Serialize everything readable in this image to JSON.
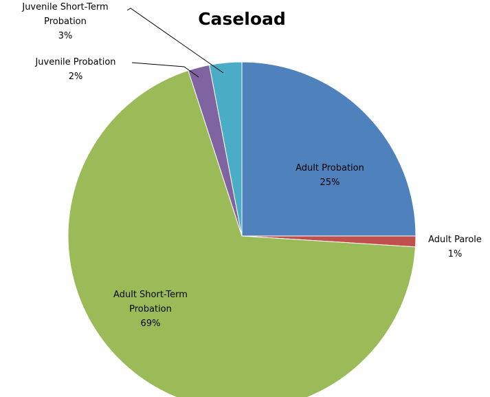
{
  "chart_data": {
    "type": "pie",
    "title": "Caseload",
    "slices": [
      {
        "label": "Adult Probation",
        "value": 25,
        "value_label": "25%",
        "color": "#4f81bd",
        "label_lines": [
          "Adult Probation"
        ]
      },
      {
        "label": "Adult Parole",
        "value": 1,
        "value_label": "1%",
        "color": "#c0504d",
        "label_lines": [
          "Adult Parole"
        ]
      },
      {
        "label": "Adult Short-Term Probation",
        "value": 69,
        "value_label": "69%",
        "color": "#9bbb59",
        "label_lines": [
          "Adult Short-Term",
          "Probation"
        ]
      },
      {
        "label": "Juvenile Probation",
        "value": 2,
        "value_label": "2%",
        "color": "#8064a2",
        "label_lines": [
          "Juvenile Probation"
        ]
      },
      {
        "label": "Juvenile Short-Term Probation",
        "value": 3,
        "value_label": "3%",
        "color": "#4bacc6",
        "label_lines": [
          "Juvenile Short-Term",
          "Probation"
        ]
      }
    ]
  }
}
